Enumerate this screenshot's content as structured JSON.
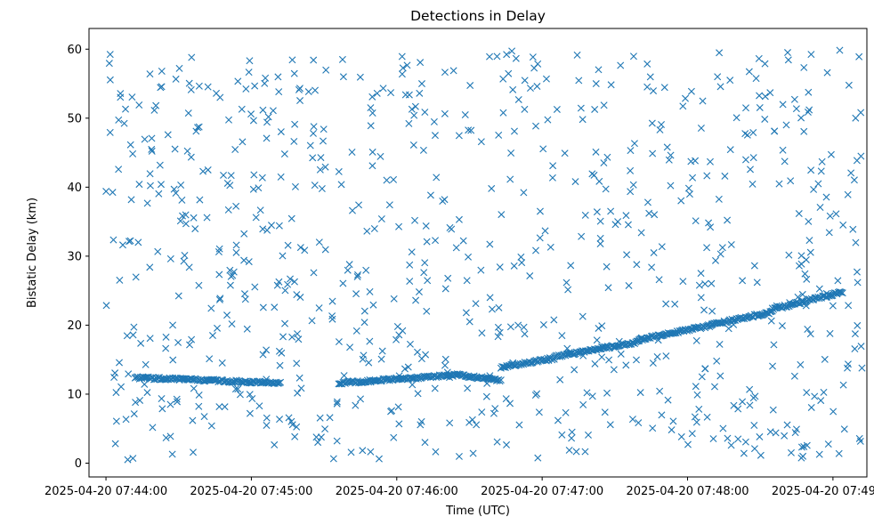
{
  "chart_data": {
    "type": "scatter",
    "title": "Detections in Delay",
    "xlabel": "Time (UTC)",
    "ylabel": "Bistatic Delay (km)",
    "xlim": [
      "2025-04-20 07:43:53",
      "2025-04-20 07:49:14"
    ],
    "ylim": [
      -2,
      63
    ],
    "xtick_labels": [
      "2025-04-20 07:44:00",
      "2025-04-20 07:45:00",
      "2025-04-20 07:46:00",
      "2025-04-20 07:47:00",
      "2025-04-20 07:48:00",
      "2025-04-20 07:49:00"
    ],
    "ytick_values": [
      0,
      10,
      20,
      30,
      40,
      50,
      60
    ],
    "ytick_labels": [
      "0",
      "10",
      "20",
      "30",
      "40",
      "50",
      "60"
    ],
    "marker": "x",
    "color": "#1f77b4",
    "grid": false,
    "track_segments": [
      {
        "start": "2025-04-20 07:44:12",
        "end": "2025-04-20 07:45:12",
        "y_start": 12.4,
        "y_end": 11.6
      },
      {
        "start": "2025-04-20 07:45:36",
        "end": "2025-04-20 07:46:25",
        "y_start": 11.6,
        "y_end": 12.8
      },
      {
        "start": "2025-04-20 07:46:25",
        "end": "2025-04-20 07:46:43",
        "y_start": 12.8,
        "y_end": 12.0
      },
      {
        "start": "2025-04-20 07:46:43",
        "end": "2025-04-20 07:47:05",
        "y_start": 13.9,
        "y_end": 15.2
      },
      {
        "start": "2025-04-20 07:47:05",
        "end": "2025-04-20 07:47:40",
        "y_start": 15.4,
        "y_end": 17.6
      },
      {
        "start": "2025-04-20 07:47:40",
        "end": "2025-04-20 07:48:10",
        "y_start": 17.9,
        "y_end": 20.0
      },
      {
        "start": "2025-04-20 07:48:10",
        "end": "2025-04-20 07:48:35",
        "y_start": 20.1,
        "y_end": 21.9
      },
      {
        "start": "2025-04-20 07:48:35",
        "end": "2025-04-20 07:49:04",
        "y_start": 22.3,
        "y_end": 24.8
      }
    ],
    "clutter": {
      "x_range": [
        "2025-04-20 07:44:00",
        "2025-04-20 07:49:12"
      ],
      "y_range": [
        0.5,
        60
      ],
      "approx_count": 820
    }
  }
}
